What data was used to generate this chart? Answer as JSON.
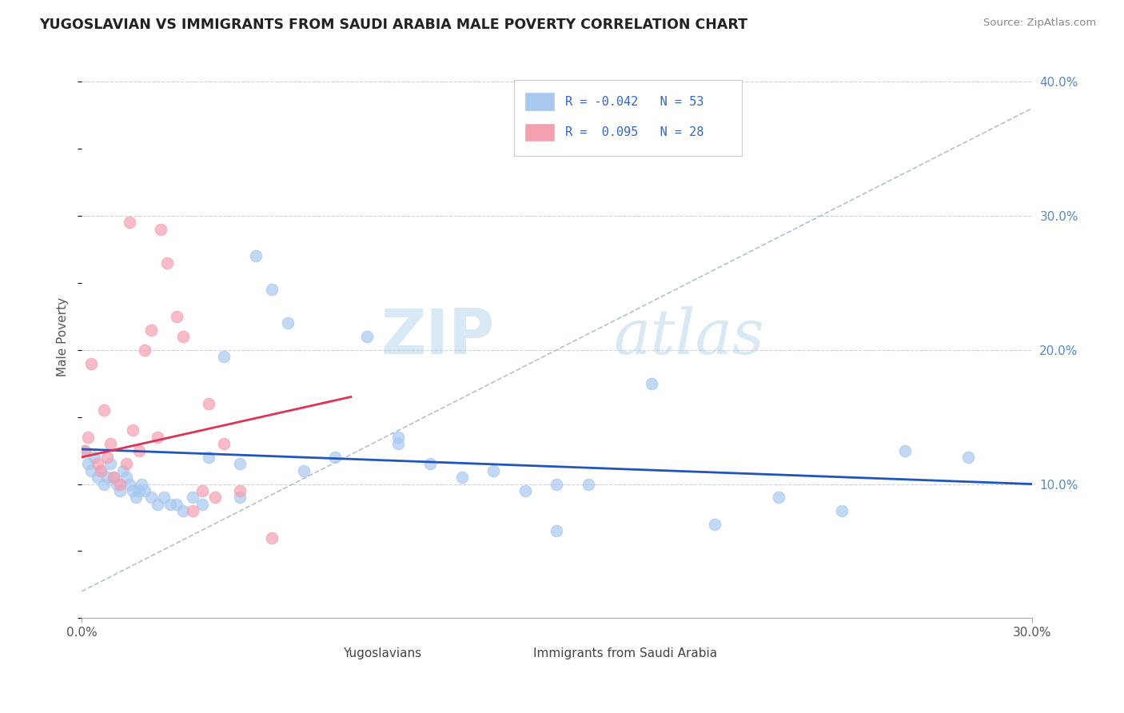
{
  "title": "YUGOSLAVIAN VS IMMIGRANTS FROM SAUDI ARABIA MALE POVERTY CORRELATION CHART",
  "source": "Source: ZipAtlas.com",
  "ylabel": "Male Poverty",
  "xlim": [
    0.0,
    0.3
  ],
  "ylim": [
    0.0,
    0.42
  ],
  "watermark_zip": "ZIP",
  "watermark_atlas": "atlas",
  "color_blue": "#A8C8F0",
  "color_pink": "#F4A0B0",
  "color_line_blue": "#2255BB",
  "color_line_pink": "#DD3355",
  "color_line_dashed": "#AABBCC",
  "legend_text_color": "#3366CC",
  "yugoslavians_x": [
    0.001,
    0.002,
    0.003,
    0.004,
    0.005,
    0.006,
    0.007,
    0.008,
    0.009,
    0.01,
    0.011,
    0.012,
    0.013,
    0.014,
    0.015,
    0.016,
    0.017,
    0.018,
    0.019,
    0.02,
    0.022,
    0.024,
    0.026,
    0.028,
    0.03,
    0.032,
    0.035,
    0.038,
    0.04,
    0.045,
    0.05,
    0.055,
    0.06,
    0.065,
    0.07,
    0.08,
    0.09,
    0.1,
    0.11,
    0.12,
    0.13,
    0.14,
    0.15,
    0.16,
    0.18,
    0.2,
    0.22,
    0.24,
    0.26,
    0.28,
    0.05,
    0.1,
    0.15
  ],
  "yugoslavians_y": [
    0.125,
    0.115,
    0.11,
    0.12,
    0.105,
    0.11,
    0.1,
    0.105,
    0.115,
    0.105,
    0.1,
    0.095,
    0.11,
    0.105,
    0.1,
    0.095,
    0.09,
    0.095,
    0.1,
    0.095,
    0.09,
    0.085,
    0.09,
    0.085,
    0.085,
    0.08,
    0.09,
    0.085,
    0.12,
    0.195,
    0.115,
    0.27,
    0.245,
    0.22,
    0.11,
    0.12,
    0.21,
    0.135,
    0.115,
    0.105,
    0.11,
    0.095,
    0.1,
    0.1,
    0.175,
    0.07,
    0.09,
    0.08,
    0.125,
    0.12,
    0.09,
    0.13,
    0.065
  ],
  "saudi_x": [
    0.001,
    0.002,
    0.003,
    0.005,
    0.006,
    0.007,
    0.008,
    0.009,
    0.01,
    0.012,
    0.014,
    0.015,
    0.016,
    0.018,
    0.02,
    0.022,
    0.024,
    0.025,
    0.027,
    0.03,
    0.032,
    0.035,
    0.038,
    0.04,
    0.042,
    0.045,
    0.05,
    0.06
  ],
  "saudi_y": [
    0.125,
    0.135,
    0.19,
    0.115,
    0.11,
    0.155,
    0.12,
    0.13,
    0.105,
    0.1,
    0.115,
    0.295,
    0.14,
    0.125,
    0.2,
    0.215,
    0.135,
    0.29,
    0.265,
    0.225,
    0.21,
    0.08,
    0.095,
    0.16,
    0.09,
    0.13,
    0.095,
    0.06
  ]
}
